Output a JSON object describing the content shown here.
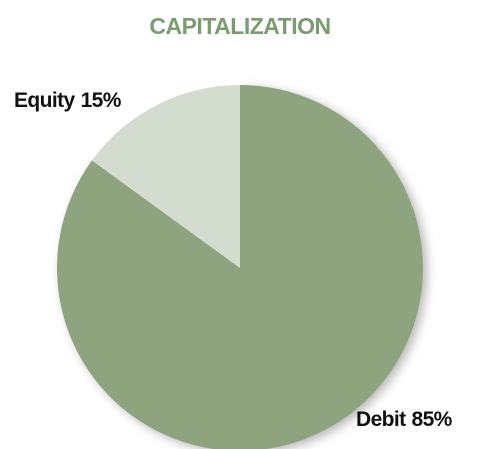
{
  "chart_data": {
    "type": "pie",
    "title": "CAPITALIZATION",
    "categories": [
      "Debit",
      "Equity"
    ],
    "values": [
      85,
      15
    ],
    "value_labels": [
      "85%",
      "15%"
    ],
    "colors": [
      "#8da47e",
      "#d3dccf"
    ]
  }
}
